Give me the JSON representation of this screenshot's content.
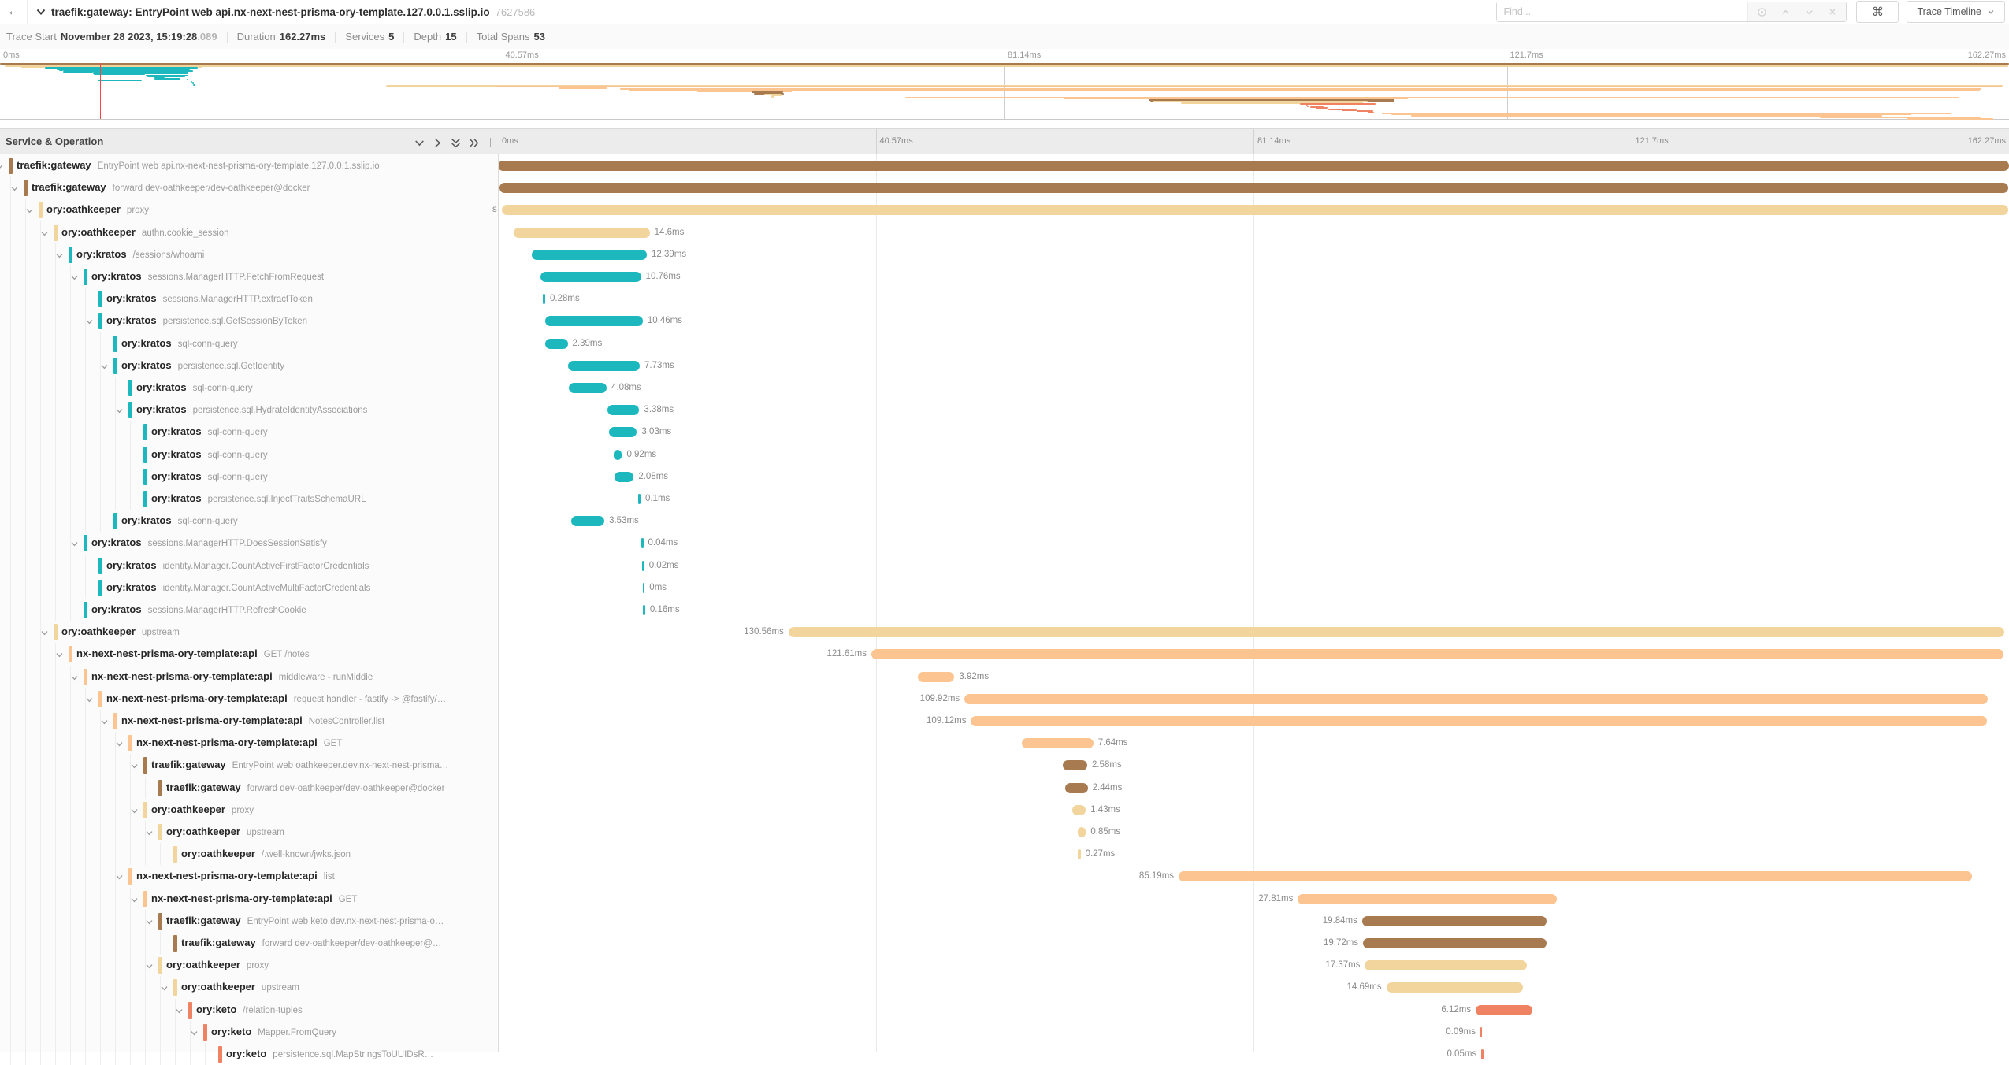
{
  "topbar": {
    "back_icon": "←",
    "title": "traefik:gateway: EntryPoint web api.nx-next-nest-prisma-ory-template.127.0.0.1.sslip.io",
    "trace_id": "7627586",
    "find_placeholder": "Find...",
    "shortcut_icon": "⌘",
    "view_selector_label": "Trace Timeline"
  },
  "trace_info": {
    "items": [
      {
        "label": "Trace Start",
        "value": "November 28 2023, 15:19:28",
        "suffix": ".089"
      },
      {
        "label": "Duration",
        "value": "162.27ms",
        "suffix": ""
      },
      {
        "label": "Services",
        "value": "5",
        "suffix": ""
      },
      {
        "label": "Depth",
        "value": "15",
        "suffix": ""
      },
      {
        "label": "Total Spans",
        "value": "53",
        "suffix": ""
      }
    ]
  },
  "timeline": {
    "header_title": "Service & Operation",
    "duration_ms": 162.27,
    "ticks": [
      "0ms",
      "40.57ms",
      "81.14ms",
      "121.7ms",
      "162.27ms"
    ],
    "cursor_ms": 8.1
  },
  "services": {
    "traefik:gateway": "#a87a50",
    "ory:oathkeeper": "#f2d49d",
    "ory:kratos": "#1db8be",
    "nx-next-nest-prisma-ory-template:api": "#fbc491",
    "ory:keto": "#ee8262"
  },
  "spans": [
    {
      "service": "traefik:gateway",
      "op": "EntryPoint web api.nx-next-nest-prisma-ory-template.127.0.0.1.sslip.io",
      "level": 0,
      "start": 0,
      "dur": 162.27,
      "label": "",
      "side": "r",
      "leaf": false
    },
    {
      "service": "traefik:gateway",
      "op": "forward dev-oathkeeper/dev-oathkeeper@docker",
      "level": 1,
      "start": 0.15,
      "dur": 162.05,
      "label": "",
      "side": "r",
      "leaf": false
    },
    {
      "service": "ory:oathkeeper",
      "op": "proxy",
      "level": 2,
      "start": 0.4,
      "dur": 161.8,
      "label": "s",
      "side": "l",
      "leaf": false
    },
    {
      "service": "ory:oathkeeper",
      "op": "authn.cookie_session",
      "level": 3,
      "start": 1.7,
      "dur": 14.6,
      "label": "14.6ms",
      "side": "r",
      "leaf": false
    },
    {
      "service": "ory:kratos",
      "op": "/sessions/whoami",
      "level": 4,
      "start": 3.6,
      "dur": 12.39,
      "label": "12.39ms",
      "side": "r",
      "leaf": false
    },
    {
      "service": "ory:kratos",
      "op": "sessions.ManagerHTTP.FetchFromRequest",
      "level": 5,
      "start": 4.6,
      "dur": 10.76,
      "label": "10.76ms",
      "side": "r",
      "leaf": false
    },
    {
      "service": "ory:kratos",
      "op": "sessions.ManagerHTTP.extractToken",
      "level": 6,
      "start": 4.8,
      "dur": 0.28,
      "label": "0.28ms",
      "side": "r",
      "leaf": true
    },
    {
      "service": "ory:kratos",
      "op": "persistence.sql.GetSessionByToken",
      "level": 6,
      "start": 5.1,
      "dur": 10.46,
      "label": "10.46ms",
      "side": "r",
      "leaf": false
    },
    {
      "service": "ory:kratos",
      "op": "sql-conn-query",
      "level": 7,
      "start": 5.1,
      "dur": 2.39,
      "label": "2.39ms",
      "side": "r",
      "leaf": true
    },
    {
      "service": "ory:kratos",
      "op": "persistence.sql.GetIdentity",
      "level": 7,
      "start": 7.5,
      "dur": 7.73,
      "label": "7.73ms",
      "side": "r",
      "leaf": false
    },
    {
      "service": "ory:kratos",
      "op": "sql-conn-query",
      "level": 8,
      "start": 7.6,
      "dur": 4.08,
      "label": "4.08ms",
      "side": "r",
      "leaf": true
    },
    {
      "service": "ory:kratos",
      "op": "persistence.sql.HydrateIdentityAssociations",
      "level": 8,
      "start": 11.8,
      "dur": 3.38,
      "label": "3.38ms",
      "side": "r",
      "leaf": false
    },
    {
      "service": "ory:kratos",
      "op": "sql-conn-query",
      "level": 9,
      "start": 11.9,
      "dur": 3.03,
      "label": "3.03ms",
      "side": "r",
      "leaf": true
    },
    {
      "service": "ory:kratos",
      "op": "sql-conn-query",
      "level": 9,
      "start": 12.4,
      "dur": 0.92,
      "label": "0.92ms",
      "side": "r",
      "leaf": true
    },
    {
      "service": "ory:kratos",
      "op": "sql-conn-query",
      "level": 9,
      "start": 12.5,
      "dur": 2.08,
      "label": "2.08ms",
      "side": "r",
      "leaf": true
    },
    {
      "service": "ory:kratos",
      "op": "persistence.sql.InjectTraitsSchemaURL",
      "level": 9,
      "start": 15.1,
      "dur": 0.1,
      "label": "0.1ms",
      "side": "r",
      "leaf": true
    },
    {
      "service": "ory:kratos",
      "op": "sql-conn-query",
      "level": 7,
      "start": 7.9,
      "dur": 3.53,
      "label": "3.53ms",
      "side": "r",
      "leaf": true
    },
    {
      "service": "ory:kratos",
      "op": "sessions.ManagerHTTP.DoesSessionSatisfy",
      "level": 5,
      "start": 15.4,
      "dur": 0.04,
      "label": "0.04ms",
      "side": "r",
      "leaf": false
    },
    {
      "service": "ory:kratos",
      "op": "identity.Manager.CountActiveFirstFactorCredentials",
      "level": 6,
      "start": 15.5,
      "dur": 0.02,
      "label": "0.02ms",
      "side": "r",
      "leaf": true
    },
    {
      "service": "ory:kratos",
      "op": "identity.Manager.CountActiveMultiFactorCredentials",
      "level": 6,
      "start": 15.55,
      "dur": 0,
      "label": "0ms",
      "side": "r",
      "leaf": true
    },
    {
      "service": "ory:kratos",
      "op": "sessions.ManagerHTTP.RefreshCookie",
      "level": 5,
      "start": 15.6,
      "dur": 0.16,
      "label": "0.16ms",
      "side": "r",
      "leaf": true
    },
    {
      "service": "ory:oathkeeper",
      "op": "upstream",
      "level": 3,
      "start": 31.2,
      "dur": 130.56,
      "label": "130.56ms",
      "side": "l",
      "leaf": false
    },
    {
      "service": "nx-next-nest-prisma-ory-template:api",
      "op": "GET /notes",
      "level": 4,
      "start": 40.1,
      "dur": 121.61,
      "label": "121.61ms",
      "side": "l",
      "leaf": false
    },
    {
      "service": "nx-next-nest-prisma-ory-template:api",
      "op": "middleware - runMiddie",
      "level": 5,
      "start": 45.1,
      "dur": 3.92,
      "label": "3.92ms",
      "side": "r",
      "leaf": false
    },
    {
      "service": "nx-next-nest-prisma-ory-template:api",
      "op": "request handler - fastify -> @fastify/…",
      "level": 6,
      "start": 50.1,
      "dur": 109.92,
      "label": "109.92ms",
      "side": "l",
      "leaf": false
    },
    {
      "service": "nx-next-nest-prisma-ory-template:api",
      "op": "NotesController.list",
      "level": 7,
      "start": 50.8,
      "dur": 109.12,
      "label": "109.12ms",
      "side": "l",
      "leaf": false
    },
    {
      "service": "nx-next-nest-prisma-ory-template:api",
      "op": "GET",
      "level": 8,
      "start": 56.3,
      "dur": 7.64,
      "label": "7.64ms",
      "side": "r",
      "leaf": false
    },
    {
      "service": "traefik:gateway",
      "op": "EntryPoint web oathkeeper.dev.nx-next-nest-prisma…",
      "level": 9,
      "start": 60.7,
      "dur": 2.58,
      "label": "2.58ms",
      "side": "r",
      "leaf": false
    },
    {
      "service": "traefik:gateway",
      "op": "forward dev-oathkeeper/dev-oathkeeper@docker",
      "level": 10,
      "start": 60.9,
      "dur": 2.44,
      "label": "2.44ms",
      "side": "r",
      "leaf": true
    },
    {
      "service": "ory:oathkeeper",
      "op": "proxy",
      "level": 9,
      "start": 61.7,
      "dur": 1.43,
      "label": "1.43ms",
      "side": "r",
      "leaf": false
    },
    {
      "service": "ory:oathkeeper",
      "op": "upstream",
      "level": 10,
      "start": 62.3,
      "dur": 0.85,
      "label": "0.85ms",
      "side": "r",
      "leaf": false
    },
    {
      "service": "ory:oathkeeper",
      "op": "/.well-known/jwks.json",
      "level": 11,
      "start": 62.3,
      "dur": 0.27,
      "label": "0.27ms",
      "side": "r",
      "leaf": true
    },
    {
      "service": "nx-next-nest-prisma-ory-template:api",
      "op": "list",
      "level": 8,
      "start": 73.1,
      "dur": 85.19,
      "label": "85.19ms",
      "side": "l",
      "leaf": false
    },
    {
      "service": "nx-next-nest-prisma-ory-template:api",
      "op": "GET",
      "level": 9,
      "start": 85.9,
      "dur": 27.81,
      "label": "27.81ms",
      "side": "l",
      "leaf": false
    },
    {
      "service": "traefik:gateway",
      "op": "EntryPoint web keto.dev.nx-next-nest-prisma-o…",
      "level": 10,
      "start": 92.8,
      "dur": 19.84,
      "label": "19.84ms",
      "side": "l",
      "leaf": false
    },
    {
      "service": "traefik:gateway",
      "op": "forward dev-oathkeeper/dev-oathkeeper@…",
      "level": 11,
      "start": 92.9,
      "dur": 19.72,
      "label": "19.72ms",
      "side": "l",
      "leaf": true
    },
    {
      "service": "ory:oathkeeper",
      "op": "proxy",
      "level": 10,
      "start": 93.1,
      "dur": 17.37,
      "label": "17.37ms",
      "side": "l",
      "leaf": false
    },
    {
      "service": "ory:oathkeeper",
      "op": "upstream",
      "level": 11,
      "start": 95.4,
      "dur": 14.69,
      "label": "14.69ms",
      "side": "l",
      "leaf": false
    },
    {
      "service": "ory:keto",
      "op": "/relation-tuples",
      "level": 12,
      "start": 105.0,
      "dur": 6.12,
      "label": "6.12ms",
      "side": "l",
      "leaf": false
    },
    {
      "service": "ory:keto",
      "op": "Mapper.FromQuery",
      "level": 13,
      "start": 105.5,
      "dur": 0.09,
      "label": "0.09ms",
      "side": "l",
      "leaf": false
    },
    {
      "service": "ory:keto",
      "op": "persistence.sql.MapStringsToUUIDsR…",
      "level": 14,
      "start": 105.6,
      "dur": 0.05,
      "label": "0.05ms",
      "side": "l",
      "leaf": true
    }
  ],
  "minimap_hidden_spans": [
    {
      "service": "ory:keto",
      "start": 105.8,
      "dur": 1.1
    },
    {
      "service": "ory:keto",
      "start": 106.3,
      "dur": 0.9
    },
    {
      "service": "ory:keto",
      "start": 107.3,
      "dur": 1.6
    },
    {
      "service": "ory:keto",
      "start": 108.4,
      "dur": 1.2
    },
    {
      "service": "ory:keto",
      "start": 109.6,
      "dur": 1.3
    },
    {
      "service": "ory:keto",
      "start": 110.5,
      "dur": 0.5
    },
    {
      "service": "nx-next-nest-prisma-ory-template:api",
      "start": 111.6,
      "dur": 46
    },
    {
      "service": "nx-next-nest-prisma-ory-template:api",
      "start": 112.4,
      "dur": 42
    },
    {
      "service": "nx-next-nest-prisma-ory-template:api",
      "start": 114,
      "dur": 38
    },
    {
      "service": "nx-next-nest-prisma-ory-template:api",
      "start": 117,
      "dur": 30
    },
    {
      "service": "nx-next-nest-prisma-ory-template:api",
      "start": 147,
      "dur": 13
    },
    {
      "service": "nx-next-nest-prisma-ory-template:api",
      "start": 154,
      "dur": 7
    }
  ]
}
